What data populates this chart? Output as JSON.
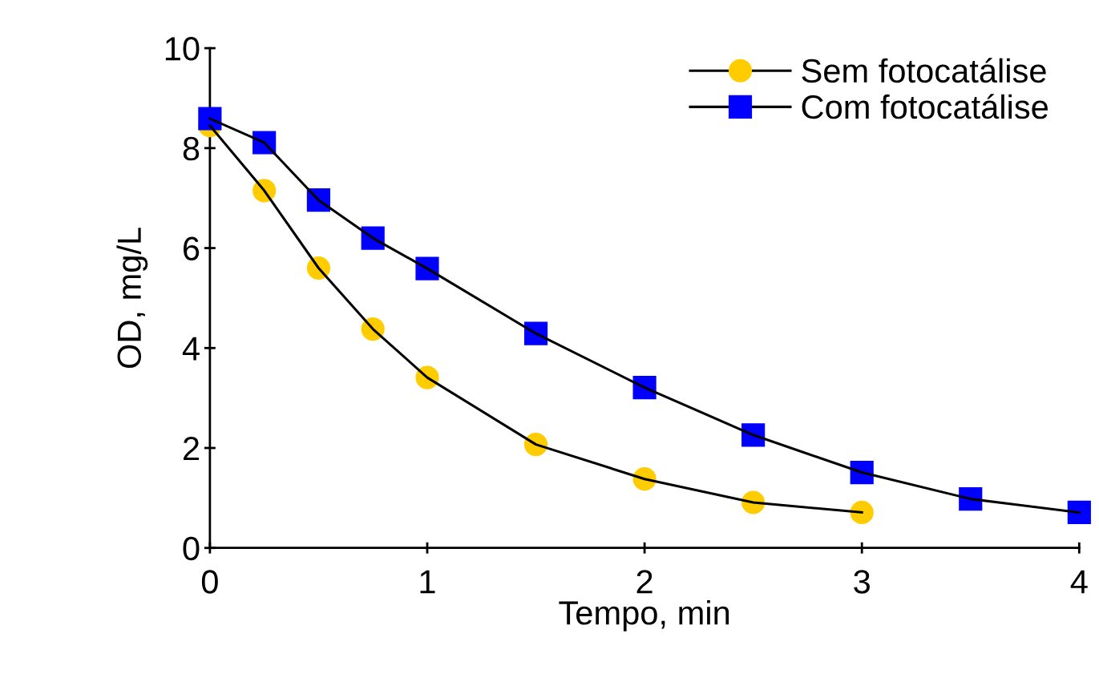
{
  "chart_data": {
    "type": "line",
    "xlabel": "Tempo, min",
    "ylabel": "OD, mg/L",
    "xlim": [
      0,
      4
    ],
    "ylim": [
      0,
      10
    ],
    "xticks": [
      0,
      1,
      2,
      3,
      4
    ],
    "yticks": [
      0,
      2,
      4,
      6,
      8,
      10
    ],
    "grid": false,
    "legend": "top right",
    "line_style": "solid",
    "series": [
      {
        "name": "Sem fotocatálise",
        "color": "#ffcc00",
        "marker": "circle",
        "x": [
          0,
          0.25,
          0.5,
          0.75,
          1,
          1.5,
          2,
          2.5,
          3
        ],
        "values": [
          8.45,
          7.15,
          5.6,
          4.38,
          3.41,
          2.07,
          1.38,
          0.91,
          0.71
        ]
      },
      {
        "name": "Com fotocatálise",
        "color": "#0000ff",
        "marker": "square",
        "x": [
          0,
          0.25,
          0.5,
          0.75,
          1,
          1.5,
          2,
          2.5,
          3,
          3.5,
          4
        ],
        "values": [
          8.59,
          8.11,
          6.96,
          6.2,
          5.59,
          4.29,
          3.21,
          2.26,
          1.51,
          0.98,
          0.71
        ]
      }
    ]
  }
}
